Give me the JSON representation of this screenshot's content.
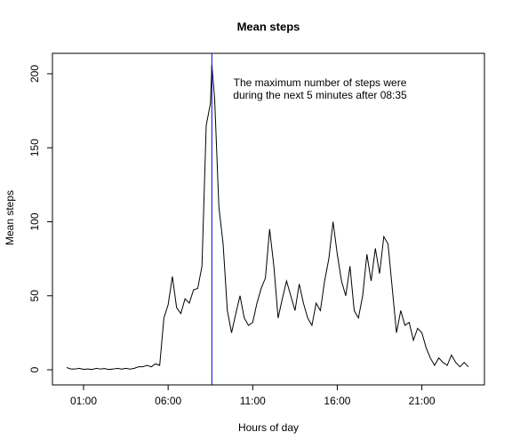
{
  "chart_data": {
    "type": "line",
    "title": "Mean steps",
    "xlabel": "Hours of day",
    "ylabel": "Mean steps",
    "annotation": [
      "The maximum number of steps were",
      "during the next 5 minutes after 08:35"
    ],
    "vline": {
      "x": 8.5833,
      "color": "#0000cc"
    },
    "x": [
      0,
      0.25,
      0.5,
      0.75,
      1,
      1.25,
      1.5,
      1.75,
      2,
      2.25,
      2.5,
      2.75,
      3,
      3.25,
      3.5,
      3.75,
      4,
      4.25,
      4.5,
      4.75,
      5,
      5.25,
      5.5,
      5.75,
      6,
      6.25,
      6.5,
      6.75,
      7,
      7.25,
      7.5,
      7.75,
      8,
      8.25,
      8.5,
      8.5833,
      8.75,
      9,
      9.25,
      9.5,
      9.75,
      10,
      10.25,
      10.5,
      10.75,
      11,
      11.25,
      11.5,
      11.75,
      12,
      12.25,
      12.5,
      12.75,
      13,
      13.25,
      13.5,
      13.75,
      14,
      14.25,
      14.5,
      14.75,
      15,
      15.25,
      15.5,
      15.75,
      16,
      16.25,
      16.5,
      16.75,
      17,
      17.25,
      17.5,
      17.75,
      18,
      18.25,
      18.5,
      18.75,
      19,
      19.25,
      19.5,
      19.75,
      20,
      20.25,
      20.5,
      20.75,
      21,
      21.25,
      21.5,
      21.75,
      22,
      22.25,
      22.5,
      22.75,
      23,
      23.25,
      23.5,
      23.75
    ],
    "series": [
      {
        "name": "Mean steps",
        "color": "#000000",
        "values": [
          1.5,
          0.5,
          0.5,
          1,
          0.3,
          0.5,
          0.2,
          1,
          0.5,
          0.8,
          0.2,
          0.5,
          1,
          0.5,
          1,
          0.5,
          1,
          2,
          2,
          3,
          2,
          4,
          3,
          35,
          44,
          63,
          42,
          38,
          48,
          45,
          54,
          55,
          70,
          165,
          180,
          206,
          183,
          110,
          85,
          40,
          25,
          38,
          50,
          35,
          30,
          32,
          45,
          55,
          62,
          95,
          70,
          35,
          48,
          60,
          50,
          40,
          58,
          45,
          35,
          30,
          45,
          40,
          60,
          75,
          100,
          78,
          60,
          50,
          70,
          40,
          35,
          50,
          78,
          60,
          82,
          65,
          90,
          85,
          55,
          25,
          40,
          30,
          32,
          20,
          28,
          25,
          15,
          8,
          3,
          8,
          5,
          3,
          10,
          5,
          2,
          5,
          2
        ]
      }
    ],
    "xlim": [
      -0.84,
      24.7
    ],
    "ylim": [
      -10.2,
      213.8
    ],
    "xticks": [
      {
        "value": 1,
        "label": "01:00"
      },
      {
        "value": 6,
        "label": "06:00"
      },
      {
        "value": 11,
        "label": "11:00"
      },
      {
        "value": 16,
        "label": "16:00"
      },
      {
        "value": 21,
        "label": "21:00"
      }
    ],
    "yticks": [
      0,
      50,
      100,
      150,
      200
    ]
  }
}
